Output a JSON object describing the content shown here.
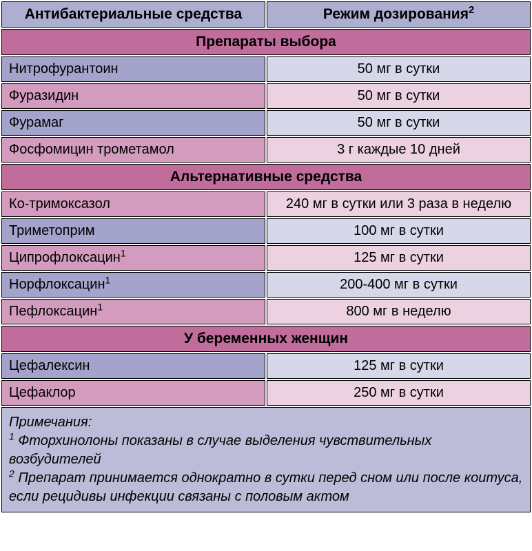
{
  "colors": {
    "header_bg": "#aeaed1",
    "section_bg": "#c06d9c",
    "drug_purple": "#a4a3cb",
    "drug_pink": "#d39cbe",
    "dose_lav_light": "#d7d7ea",
    "dose_pink_light": "#ecd2e1",
    "notes_bg": "#bcbcd8",
    "border": "#000000",
    "text": "#000000"
  },
  "col_widths": {
    "left_pct": 50,
    "right_pct": 50
  },
  "header": {
    "col1": "Антибактериальные средства",
    "col2": "Режим дозирования",
    "col2_sup": "2"
  },
  "sections": [
    {
      "title": "Препараты выбора",
      "rows": [
        {
          "drug": "Нитрофурантоин",
          "sup": "",
          "dose": "50 мг в сутки",
          "drug_bg": "#a4a3cb",
          "dose_bg": "#d7d7ea"
        },
        {
          "drug": "Фуразидин",
          "sup": "",
          "dose": "50 мг в сутки",
          "drug_bg": "#d39cbe",
          "dose_bg": "#ecd2e1"
        },
        {
          "drug": "Фурамаг",
          "sup": "",
          "dose": "50 мг в сутки",
          "drug_bg": "#a4a3cb",
          "dose_bg": "#d7d7ea"
        },
        {
          "drug": "Фосфомицин трометамол",
          "sup": "",
          "dose": "3 г каждые 10 дней",
          "drug_bg": "#d39cbe",
          "dose_bg": "#ecd2e1"
        }
      ]
    },
    {
      "title": "Альтернативные средства",
      "rows": [
        {
          "drug": "Ко-тримоксазол",
          "sup": "",
          "dose": "240 мг в сутки или 3 раза в неделю",
          "drug_bg": "#d39cbe",
          "dose_bg": "#ecd2e1"
        },
        {
          "drug": "Триметоприм",
          "sup": "",
          "dose": "100 мг в сутки",
          "drug_bg": "#a4a3cb",
          "dose_bg": "#d7d7ea"
        },
        {
          "drug": "Ципрофлоксацин",
          "sup": "1",
          "dose": "125 мг в сутки",
          "drug_bg": "#d39cbe",
          "dose_bg": "#ecd2e1"
        },
        {
          "drug": "Норфлоксацин",
          "sup": "1",
          "dose": "200-400 мг в сутки",
          "drug_bg": "#a4a3cb",
          "dose_bg": "#d7d7ea"
        },
        {
          "drug": "Пефлоксацин",
          "sup": "1",
          "dose": "800 мг в неделю",
          "drug_bg": "#d39cbe",
          "dose_bg": "#ecd2e1"
        }
      ]
    },
    {
      "title": "У беременных женщин",
      "rows": [
        {
          "drug": "Цефалексин",
          "sup": "",
          "dose": "125 мг в сутки",
          "drug_bg": "#a4a3cb",
          "dose_bg": "#d7d7ea"
        },
        {
          "drug": "Цефаклор",
          "sup": "",
          "dose": "250 мг в сутки",
          "drug_bg": "#d39cbe",
          "dose_bg": "#ecd2e1"
        }
      ]
    }
  ],
  "notes": {
    "heading": "Примечания:",
    "lines": [
      {
        "sup": "1",
        "text": "Фторхинолоны показаны в случае выделения чувствительных возбудителей"
      },
      {
        "sup": "2",
        "text": "Препарат принимается однократно в сутки перед сном или после коитуса, если рецидивы инфекции связаны с половым актом"
      }
    ]
  }
}
